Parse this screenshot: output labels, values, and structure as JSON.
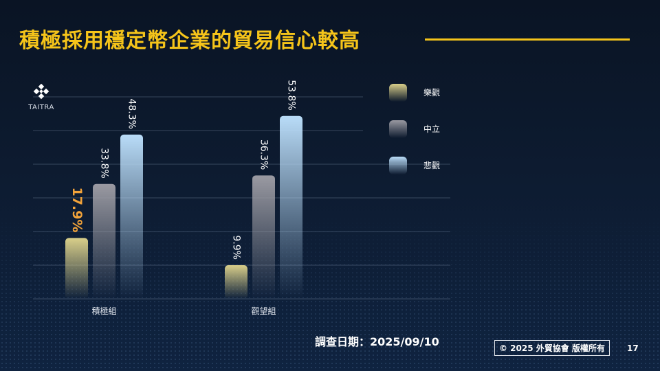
{
  "slide": {
    "title": "積極採用穩定幣企業的貿易信心較高",
    "logo_text": "TAITRA",
    "survey_date": "調查日期：2025/09/10",
    "copyright": "© 2025 外貿協會 版權所有",
    "page_number": "17",
    "colors": {
      "accent": "#f5c41a",
      "highlight_label": "#f2a33a"
    },
    "icons": {
      "logo": "taitra-logo-icon"
    }
  },
  "chart_data": {
    "type": "bar",
    "title": "",
    "xlabel": "",
    "ylabel": "",
    "categories": [
      "積極組",
      "觀望組"
    ],
    "series": [
      {
        "name": "樂觀",
        "values": [
          17.9,
          9.9
        ],
        "labels": [
          "17.9%",
          "9.9%"
        ],
        "color": "#d9cf8a"
      },
      {
        "name": "中立",
        "values": [
          33.8,
          36.3
        ],
        "labels": [
          "33.8%",
          "36.3%"
        ],
        "color": "#9a9aa2"
      },
      {
        "name": "悲觀",
        "values": [
          48.3,
          53.8
        ],
        "labels": [
          "48.3%",
          "53.8%"
        ],
        "color": "#b9dcf8"
      }
    ],
    "highlight": {
      "category": "積極組",
      "series": "樂觀"
    },
    "ylim": [
      0,
      55
    ],
    "grid": true,
    "legend": "right"
  }
}
